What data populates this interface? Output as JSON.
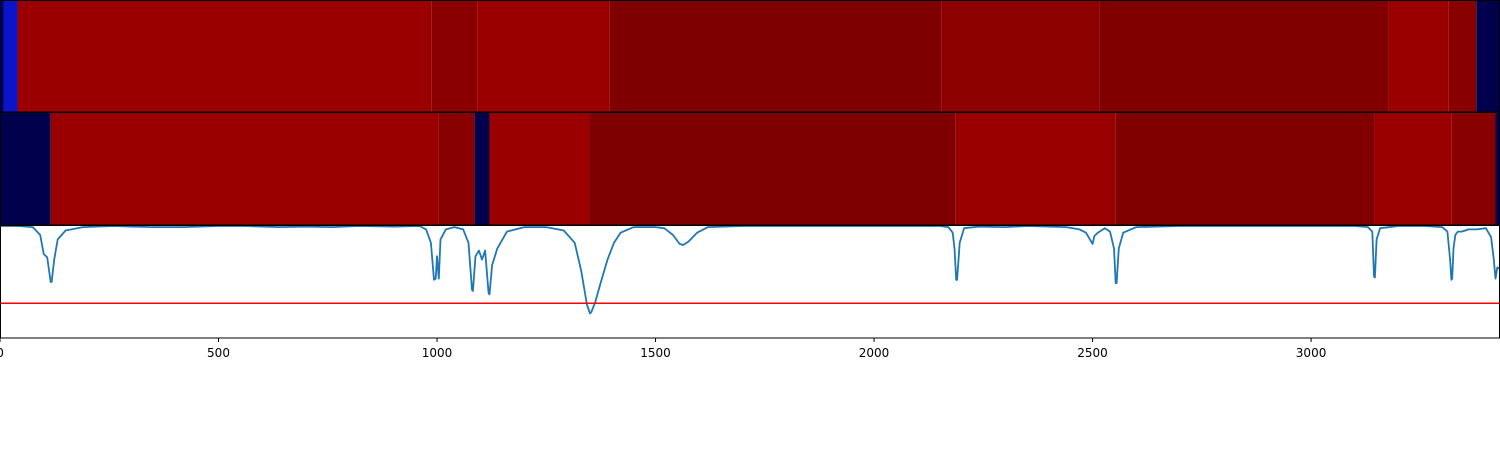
{
  "chart_data": {
    "type": "heatmap",
    "xlim": [
      0,
      3430
    ],
    "x_ticks": [
      {
        "value": 0,
        "label": "0"
      },
      {
        "value": 500,
        "label": "500"
      },
      {
        "value": 1000,
        "label": "1000"
      },
      {
        "value": 1500,
        "label": "1500"
      },
      {
        "value": 2000,
        "label": "2000"
      },
      {
        "value": 2500,
        "label": "2500"
      },
      {
        "value": 3000,
        "label": "3000"
      }
    ],
    "segment_rows": [
      {
        "name": "",
        "segments": [
          {
            "start": 0,
            "end": 8,
            "color": "#00006a"
          },
          {
            "start": 8,
            "end": 40,
            "color": "#0a14c8"
          },
          {
            "start": 40,
            "end": 988,
            "color": "#9a0000"
          },
          {
            "start": 988,
            "end": 1093,
            "color": "#8a0000"
          },
          {
            "start": 1093,
            "end": 1395,
            "color": "#9a0000"
          },
          {
            "start": 1395,
            "end": 2155,
            "color": "#7e0000"
          },
          {
            "start": 2155,
            "end": 2515,
            "color": "#8c0000"
          },
          {
            "start": 2515,
            "end": 3177,
            "color": "#800000"
          },
          {
            "start": 3177,
            "end": 3315,
            "color": "#9a0000"
          },
          {
            "start": 3315,
            "end": 3378,
            "color": "#880000"
          },
          {
            "start": 3378,
            "end": 3430,
            "color": "#00004c"
          }
        ]
      },
      {
        "name": "",
        "segments": [
          {
            "start": 0,
            "end": 116,
            "color": "#00004c"
          },
          {
            "start": 116,
            "end": 1003,
            "color": "#9a0000"
          },
          {
            "start": 1003,
            "end": 1086,
            "color": "#880000"
          },
          {
            "start": 1086,
            "end": 1120,
            "color": "#00004c"
          },
          {
            "start": 1120,
            "end": 1350,
            "color": "#9a0000"
          },
          {
            "start": 1350,
            "end": 2186,
            "color": "#7e0000"
          },
          {
            "start": 2186,
            "end": 2553,
            "color": "#9a0000"
          },
          {
            "start": 2553,
            "end": 3145,
            "color": "#800000"
          },
          {
            "start": 3145,
            "end": 3322,
            "color": "#9a0000"
          },
          {
            "start": 3322,
            "end": 3422,
            "color": "#880000"
          },
          {
            "start": 3422,
            "end": 3430,
            "color": "#00004c"
          }
        ]
      }
    ],
    "line": {
      "color": "#1f77b4",
      "ylim": [
        0,
        1
      ],
      "threshold": {
        "value": 0.69,
        "color": "#ff0000"
      },
      "points": [
        [
          0,
          0.0
        ],
        [
          40,
          0.0
        ],
        [
          75,
          0.01
        ],
        [
          92,
          0.08
        ],
        [
          100,
          0.25
        ],
        [
          108,
          0.28
        ],
        [
          116,
          0.5
        ],
        [
          118,
          0.5
        ],
        [
          124,
          0.3
        ],
        [
          132,
          0.12
        ],
        [
          150,
          0.04
        ],
        [
          190,
          0.01
        ],
        [
          260,
          0.0
        ],
        [
          300,
          0.005
        ],
        [
          350,
          0.01
        ],
        [
          420,
          0.01
        ],
        [
          500,
          0.0
        ],
        [
          560,
          0.0
        ],
        [
          640,
          0.01
        ],
        [
          700,
          0.005
        ],
        [
          760,
          0.01
        ],
        [
          820,
          0.0
        ],
        [
          900,
          0.005
        ],
        [
          960,
          0.0
        ],
        [
          975,
          0.03
        ],
        [
          986,
          0.15
        ],
        [
          993,
          0.48
        ],
        [
          997,
          0.47
        ],
        [
          1000,
          0.27
        ],
        [
          1004,
          0.47
        ],
        [
          1008,
          0.12
        ],
        [
          1020,
          0.03
        ],
        [
          1040,
          0.01
        ],
        [
          1060,
          0.03
        ],
        [
          1072,
          0.15
        ],
        [
          1080,
          0.57
        ],
        [
          1082,
          0.58
        ],
        [
          1088,
          0.27
        ],
        [
          1096,
          0.22
        ],
        [
          1103,
          0.3
        ],
        [
          1110,
          0.22
        ],
        [
          1118,
          0.6
        ],
        [
          1120,
          0.61
        ],
        [
          1126,
          0.35
        ],
        [
          1138,
          0.2
        ],
        [
          1160,
          0.05
        ],
        [
          1200,
          0.01
        ],
        [
          1250,
          0.01
        ],
        [
          1290,
          0.04
        ],
        [
          1315,
          0.15
        ],
        [
          1330,
          0.4
        ],
        [
          1343,
          0.7
        ],
        [
          1350,
          0.78
        ],
        [
          1353,
          0.77
        ],
        [
          1362,
          0.68
        ],
        [
          1375,
          0.5
        ],
        [
          1390,
          0.3
        ],
        [
          1405,
          0.15
        ],
        [
          1420,
          0.06
        ],
        [
          1450,
          0.01
        ],
        [
          1500,
          0.01
        ],
        [
          1520,
          0.02
        ],
        [
          1540,
          0.08
        ],
        [
          1555,
          0.16
        ],
        [
          1563,
          0.17
        ],
        [
          1575,
          0.14
        ],
        [
          1595,
          0.06
        ],
        [
          1620,
          0.01
        ],
        [
          1700,
          0.0
        ],
        [
          1800,
          0.0
        ],
        [
          1900,
          0.0
        ],
        [
          2000,
          0.0
        ],
        [
          2100,
          0.0
        ],
        [
          2150,
          0.0
        ],
        [
          2170,
          0.01
        ],
        [
          2180,
          0.06
        ],
        [
          2184,
          0.2
        ],
        [
          2188,
          0.48
        ],
        [
          2190,
          0.48
        ],
        [
          2196,
          0.15
        ],
        [
          2206,
          0.02
        ],
        [
          2240,
          0.005
        ],
        [
          2300,
          0.01
        ],
        [
          2350,
          0.0
        ],
        [
          2400,
          0.005
        ],
        [
          2440,
          0.01
        ],
        [
          2470,
          0.03
        ],
        [
          2485,
          0.06
        ],
        [
          2494,
          0.12
        ],
        [
          2500,
          0.16
        ],
        [
          2504,
          0.09
        ],
        [
          2512,
          0.06
        ],
        [
          2528,
          0.02
        ],
        [
          2540,
          0.05
        ],
        [
          2549,
          0.2
        ],
        [
          2553,
          0.51
        ],
        [
          2555,
          0.51
        ],
        [
          2560,
          0.2
        ],
        [
          2570,
          0.06
        ],
        [
          2600,
          0.01
        ],
        [
          2700,
          0.0
        ],
        [
          2800,
          0.0
        ],
        [
          2900,
          0.0
        ],
        [
          3000,
          0.0
        ],
        [
          3100,
          0.0
        ],
        [
          3130,
          0.01
        ],
        [
          3140,
          0.05
        ],
        [
          3144,
          0.45
        ],
        [
          3146,
          0.46
        ],
        [
          3150,
          0.12
        ],
        [
          3158,
          0.02
        ],
        [
          3200,
          0.0
        ],
        [
          3260,
          0.0
        ],
        [
          3300,
          0.01
        ],
        [
          3312,
          0.05
        ],
        [
          3318,
          0.3
        ],
        [
          3321,
          0.48
        ],
        [
          3323,
          0.47
        ],
        [
          3326,
          0.2
        ],
        [
          3330,
          0.08
        ],
        [
          3336,
          0.05
        ],
        [
          3345,
          0.05
        ],
        [
          3360,
          0.03
        ],
        [
          3380,
          0.03
        ],
        [
          3400,
          0.02
        ],
        [
          3412,
          0.1
        ],
        [
          3418,
          0.3
        ],
        [
          3422,
          0.47
        ],
        [
          3426,
          0.37
        ],
        [
          3430,
          0.38
        ]
      ]
    }
  }
}
